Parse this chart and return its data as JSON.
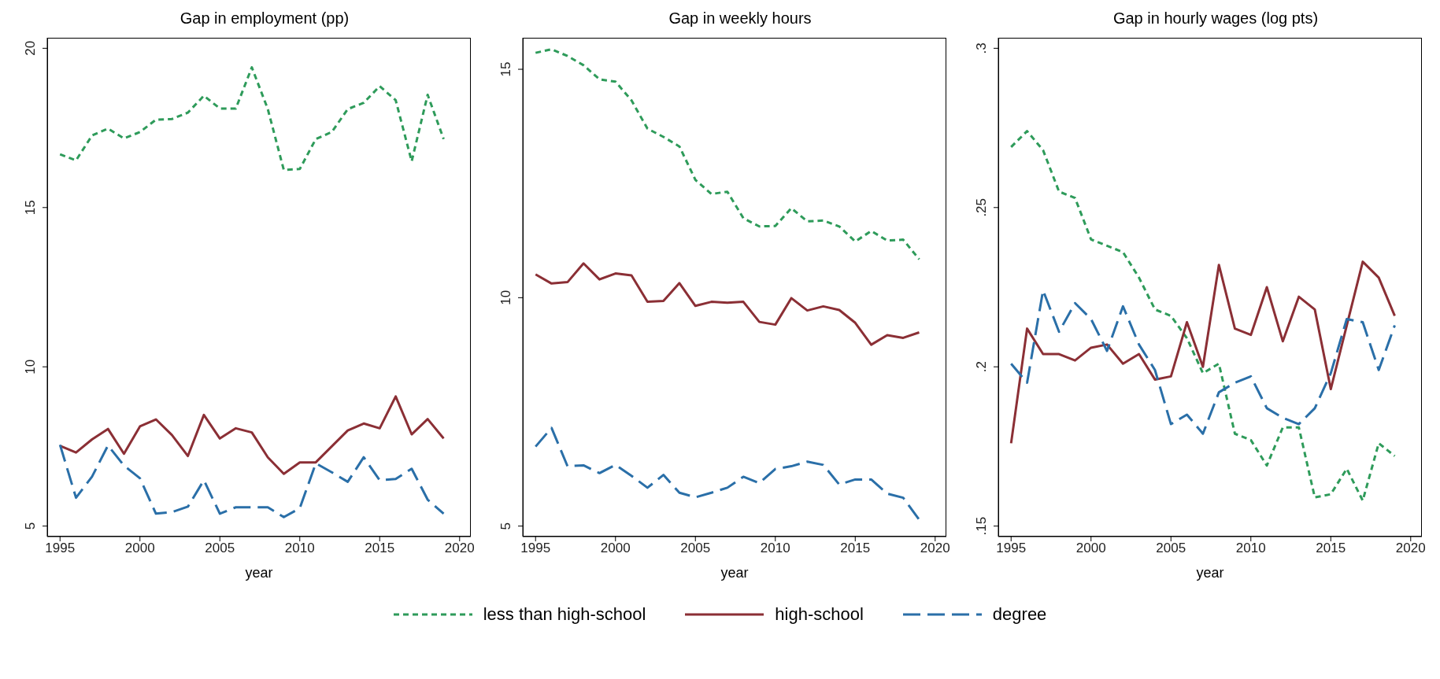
{
  "chart_data": [
    {
      "type": "line",
      "title": "Gap in employment (pp)",
      "xlabel": "year",
      "legend": "bottom",
      "marker": "none",
      "x": [
        1995,
        1996,
        1997,
        1998,
        1999,
        2000,
        2001,
        2002,
        2003,
        2004,
        2005,
        2006,
        2007,
        2008,
        2009,
        2010,
        2011,
        2012,
        2013,
        2014,
        2015,
        2016,
        2017,
        2018,
        2019
      ],
      "xlim": [
        1994.2,
        2020.7
      ],
      "xticks": [
        1995,
        2000,
        2005,
        2010,
        2015,
        2020
      ],
      "ylim": [
        4.67,
        20.33
      ],
      "yticks": [
        5,
        10,
        15,
        20
      ],
      "series": [
        {
          "name": "less than high-school",
          "color": "#2e9b5a",
          "line_style": "dotted",
          "values": [
            16.67,
            16.48,
            17.26,
            17.48,
            17.17,
            17.37,
            17.76,
            17.78,
            17.98,
            18.51,
            18.11,
            18.11,
            19.4,
            18.09,
            16.18,
            16.21,
            17.15,
            17.37,
            18.09,
            18.29,
            18.81,
            18.37,
            16.45,
            18.54,
            17.15
          ]
        },
        {
          "name": "high-school",
          "color": "#8b2f35",
          "line_style": "solid",
          "values": [
            7.52,
            7.31,
            7.72,
            8.05,
            7.27,
            8.13,
            8.35,
            7.86,
            7.2,
            8.49,
            7.75,
            8.07,
            7.94,
            7.16,
            6.64,
            7.0,
            7.0,
            7.5,
            8.0,
            8.22,
            8.07,
            9.07,
            7.88,
            8.36,
            7.75
          ]
        },
        {
          "name": "degree",
          "color": "#2a6fa8",
          "line_style": "dashed",
          "values": [
            7.55,
            5.89,
            6.55,
            7.53,
            6.9,
            6.5,
            5.39,
            5.44,
            5.61,
            6.44,
            5.39,
            5.59,
            5.59,
            5.59,
            5.28,
            5.56,
            6.97,
            6.69,
            6.39,
            7.16,
            6.44,
            6.48,
            6.8,
            5.83,
            5.39
          ]
        }
      ]
    },
    {
      "type": "line",
      "title": "Gap in weekly hours",
      "xlabel": "year",
      "legend": "bottom",
      "marker": "none",
      "x": [
        1995,
        1996,
        1997,
        1998,
        1999,
        2000,
        2001,
        2002,
        2003,
        2004,
        2005,
        2006,
        2007,
        2008,
        2009,
        2010,
        2011,
        2012,
        2013,
        2014,
        2015,
        2016,
        2017,
        2018,
        2019
      ],
      "xlim": [
        1994.2,
        2020.7
      ],
      "xticks": [
        1995,
        2000,
        2005,
        2010,
        2015,
        2020
      ],
      "ylim": [
        4.77,
        15.69
      ],
      "yticks": [
        5,
        10,
        15
      ],
      "series": [
        {
          "name": "less than high-school",
          "color": "#2e9b5a",
          "line_style": "dotted",
          "values": [
            15.36,
            15.44,
            15.29,
            15.09,
            14.78,
            14.73,
            14.32,
            13.7,
            13.52,
            13.31,
            12.58,
            12.27,
            12.32,
            11.74,
            11.56,
            11.57,
            11.96,
            11.67,
            11.69,
            11.56,
            11.23,
            11.46,
            11.25,
            11.27,
            10.84
          ]
        },
        {
          "name": "high-school",
          "color": "#8b2f35",
          "line_style": "solid",
          "values": [
            10.51,
            10.31,
            10.34,
            10.75,
            10.4,
            10.53,
            10.49,
            9.91,
            9.93,
            10.32,
            9.82,
            9.91,
            9.89,
            9.91,
            9.47,
            9.41,
            9.99,
            9.72,
            9.81,
            9.73,
            9.45,
            8.97,
            9.18,
            9.12,
            9.24
          ]
        },
        {
          "name": "degree",
          "color": "#2a6fa8",
          "line_style": "dashed",
          "values": [
            6.74,
            7.15,
            6.31,
            6.33,
            6.16,
            6.34,
            6.1,
            5.84,
            6.12,
            5.73,
            5.63,
            5.73,
            5.84,
            6.08,
            5.94,
            6.25,
            6.31,
            6.41,
            6.34,
            5.91,
            6.02,
            6.02,
            5.71,
            5.62,
            5.14
          ]
        }
      ]
    },
    {
      "type": "line",
      "title": "Gap in hourly wages (log pts)",
      "xlabel": "year",
      "legend": "bottom",
      "marker": "none",
      "x": [
        1995,
        1996,
        1997,
        1998,
        1999,
        2000,
        2001,
        2002,
        2003,
        2004,
        2005,
        2006,
        2007,
        2008,
        2009,
        2010,
        2011,
        2012,
        2013,
        2014,
        2015,
        2016,
        2017,
        2018,
        2019
      ],
      "xlim": [
        1994.2,
        2020.7
      ],
      "xticks": [
        1995,
        2000,
        2005,
        2010,
        2015,
        2020
      ],
      "ylim": [
        0.1467,
        0.3033
      ],
      "yticks": [
        {
          "value": 0.15,
          "label": ".15"
        },
        {
          "value": 0.2,
          "label": ".2"
        },
        {
          "value": 0.25,
          "label": ".25"
        },
        {
          "value": 0.3,
          "label": ".3"
        }
      ],
      "series": [
        {
          "name": "less than high-school",
          "color": "#2e9b5a",
          "line_style": "dotted",
          "values": [
            0.269,
            0.274,
            0.268,
            0.255,
            0.253,
            0.24,
            0.238,
            0.236,
            0.228,
            0.218,
            0.216,
            0.209,
            0.198,
            0.201,
            0.179,
            0.177,
            0.169,
            0.181,
            0.181,
            0.159,
            0.16,
            0.168,
            0.158,
            0.176,
            0.172
          ]
        },
        {
          "name": "high-school",
          "color": "#8b2f35",
          "line_style": "solid",
          "values": [
            0.176,
            0.212,
            0.204,
            0.204,
            0.202,
            0.206,
            0.207,
            0.201,
            0.204,
            0.196,
            0.197,
            0.214,
            0.2,
            0.232,
            0.212,
            0.21,
            0.225,
            0.208,
            0.222,
            0.218,
            0.193,
            0.213,
            0.233,
            0.228,
            0.216
          ]
        },
        {
          "name": "degree",
          "color": "#2a6fa8",
          "line_style": "dashed",
          "values": [
            0.201,
            0.195,
            0.224,
            0.211,
            0.22,
            0.215,
            0.205,
            0.219,
            0.207,
            0.199,
            0.182,
            0.185,
            0.179,
            0.192,
            0.195,
            0.197,
            0.187,
            0.184,
            0.182,
            0.187,
            0.198,
            0.215,
            0.214,
            0.199,
            0.213
          ]
        }
      ]
    }
  ]
}
